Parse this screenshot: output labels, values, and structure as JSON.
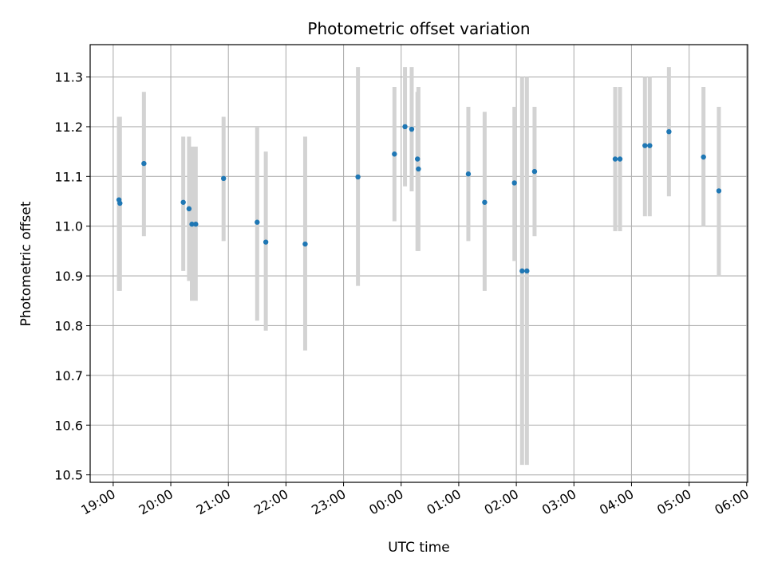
{
  "chart_data": {
    "type": "scatter",
    "title": "Photometric offset variation",
    "xlabel": "UTC time",
    "ylabel": "Photometric offset",
    "x_ticks": [
      "19:00",
      "20:00",
      "21:00",
      "22:00",
      "23:00",
      "00:00",
      "01:00",
      "02:00",
      "03:00",
      "04:00",
      "05:00",
      "06:00"
    ],
    "y_ticks": [
      "10.5",
      "10.6",
      "10.7",
      "10.8",
      "10.9",
      "11.0",
      "11.1",
      "11.2",
      "11.3"
    ],
    "xlim": [
      "18:36",
      "06:01"
    ],
    "ylim": [
      10.485,
      11.365
    ],
    "grid": true,
    "colors": {
      "point": "#1f77b4",
      "errorbar": "#d3d3d3",
      "grid": "#b0b0b0"
    },
    "points": [
      {
        "x": "19:06",
        "y": 11.053,
        "low": 10.87,
        "high": 11.22
      },
      {
        "x": "19:07",
        "y": 11.046,
        "low": 10.87,
        "high": 11.22
      },
      {
        "x": "19:32",
        "y": 11.126,
        "low": 10.98,
        "high": 11.27
      },
      {
        "x": "20:13",
        "y": 11.048,
        "low": 10.91,
        "high": 11.18
      },
      {
        "x": "20:19",
        "y": 11.035,
        "low": 10.89,
        "high": 11.18
      },
      {
        "x": "20:22",
        "y": 11.004,
        "low": 10.85,
        "high": 11.16
      },
      {
        "x": "20:26",
        "y": 11.004,
        "low": 10.85,
        "high": 11.16
      },
      {
        "x": "20:55",
        "y": 11.096,
        "low": 10.97,
        "high": 11.22
      },
      {
        "x": "21:30",
        "y": 11.008,
        "low": 10.81,
        "high": 11.2
      },
      {
        "x": "21:39",
        "y": 10.968,
        "low": 10.79,
        "high": 11.15
      },
      {
        "x": "22:20",
        "y": 10.964,
        "low": 10.75,
        "high": 11.18
      },
      {
        "x": "23:15",
        "y": 11.099,
        "low": 10.88,
        "high": 11.32
      },
      {
        "x": "23:53",
        "y": 11.145,
        "low": 11.01,
        "high": 11.28
      },
      {
        "x": "00:04",
        "y": 11.2,
        "low": 11.08,
        "high": 11.32
      },
      {
        "x": "00:11",
        "y": 11.195,
        "low": 11.07,
        "high": 11.32
      },
      {
        "x": "00:17",
        "y": 11.135,
        "low": 10.95,
        "high": 11.27
      },
      {
        "x": "00:18",
        "y": 11.115,
        "low": 10.95,
        "high": 11.28
      },
      {
        "x": "01:10",
        "y": 11.105,
        "low": 10.97,
        "high": 11.24
      },
      {
        "x": "01:27",
        "y": 11.048,
        "low": 10.87,
        "high": 11.23
      },
      {
        "x": "01:58",
        "y": 11.087,
        "low": 10.93,
        "high": 11.24
      },
      {
        "x": "02:06",
        "y": 10.91,
        "low": 10.52,
        "high": 11.3
      },
      {
        "x": "02:11",
        "y": 10.91,
        "low": 10.52,
        "high": 11.3
      },
      {
        "x": "02:19",
        "y": 11.11,
        "low": 10.98,
        "high": 11.24
      },
      {
        "x": "03:43",
        "y": 11.135,
        "low": 10.99,
        "high": 11.28
      },
      {
        "x": "03:48",
        "y": 11.135,
        "low": 10.99,
        "high": 11.28
      },
      {
        "x": "04:14",
        "y": 11.162,
        "low": 11.02,
        "high": 11.3
      },
      {
        "x": "04:19",
        "y": 11.162,
        "low": 11.02,
        "high": 11.3
      },
      {
        "x": "04:39",
        "y": 11.19,
        "low": 11.06,
        "high": 11.32
      },
      {
        "x": "05:15",
        "y": 11.139,
        "low": 11.0,
        "high": 11.28
      },
      {
        "x": "05:31",
        "y": 11.071,
        "low": 10.9,
        "high": 11.24
      }
    ]
  }
}
